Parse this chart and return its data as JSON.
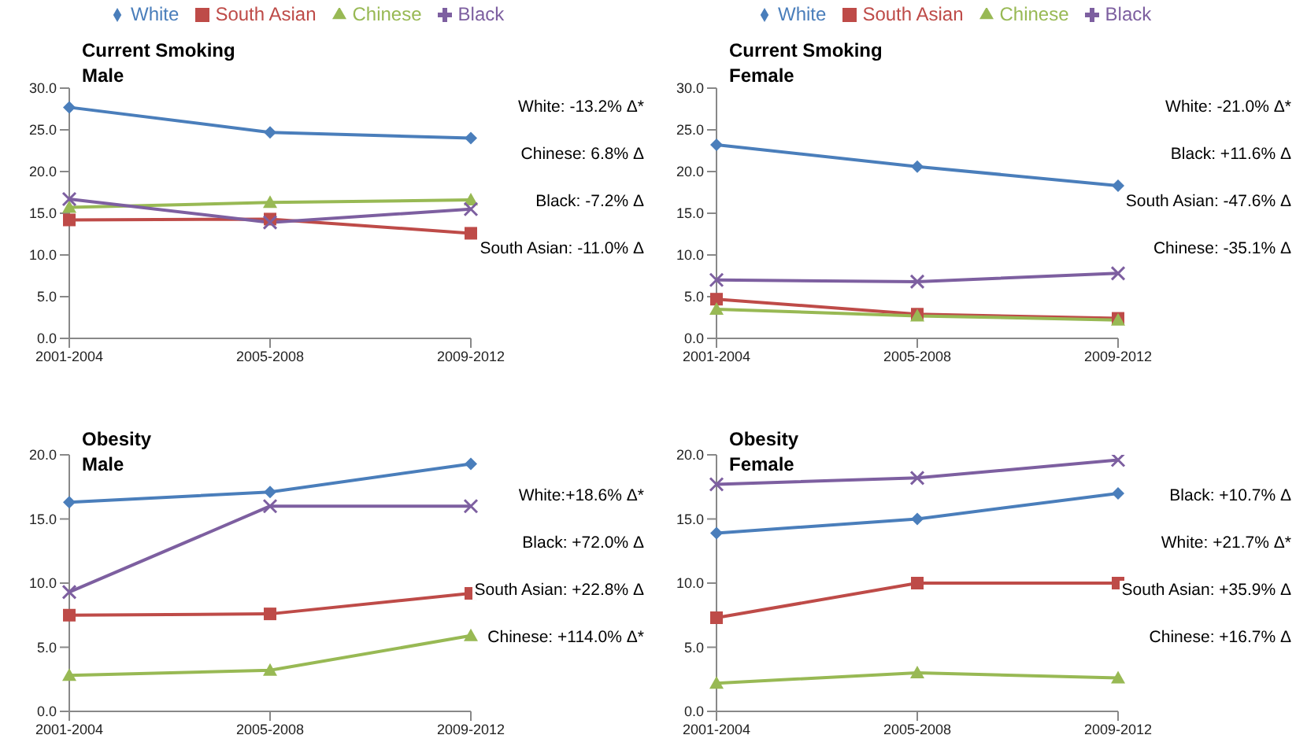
{
  "chart_data": [
    {
      "type": "line",
      "title": "Current Smoking",
      "subtitle": "Male",
      "categories": [
        "2001-2004",
        "2005-2008",
        "2009-2012"
      ],
      "ylim": [
        0,
        30
      ],
      "yticks": [
        {
          "value": 0,
          "label": "0.0"
        },
        {
          "value": 5,
          "label": "5.0"
        },
        {
          "value": 10,
          "label": "10.0"
        },
        {
          "value": 15,
          "label": "15.0"
        },
        {
          "value": 20,
          "label": "20.0"
        },
        {
          "value": 25,
          "label": "25.0"
        },
        {
          "value": 30,
          "label": "30.0"
        }
      ],
      "grid": false,
      "legend": "top",
      "series": [
        {
          "name": "White",
          "color": "#4a7ebb",
          "marker": "diamond",
          "values": [
            27.7,
            24.7,
            24.0
          ]
        },
        {
          "name": "South Asian",
          "color": "#be4b48",
          "marker": "square",
          "values": [
            14.2,
            14.3,
            12.6
          ]
        },
        {
          "name": "Chinese",
          "color": "#98b954",
          "marker": "triangle",
          "values": [
            15.7,
            16.3,
            16.6
          ]
        },
        {
          "name": "Black",
          "color": "#7d5fa0",
          "marker": "cross",
          "values": [
            16.7,
            13.9,
            15.5
          ]
        }
      ],
      "annotations": [
        "White: -13.2%  Δ*",
        "Chinese:  6.8% Δ",
        "Black: -7.2% Δ",
        "South Asian: -11.0% Δ"
      ]
    },
    {
      "type": "line",
      "title": "Current Smoking",
      "subtitle": "Female",
      "categories": [
        "2001-2004",
        "2005-2008",
        "2009-2012"
      ],
      "ylim": [
        0,
        30
      ],
      "yticks": [
        {
          "value": 0,
          "label": "0.0"
        },
        {
          "value": 5,
          "label": "5.0"
        },
        {
          "value": 10,
          "label": "10.0"
        },
        {
          "value": 15,
          "label": "15.0"
        },
        {
          "value": 20,
          "label": "20.0"
        },
        {
          "value": 25,
          "label": "25.0"
        },
        {
          "value": 30,
          "label": "30.0"
        }
      ],
      "grid": false,
      "legend": "top",
      "series": [
        {
          "name": "White",
          "color": "#4a7ebb",
          "marker": "diamond",
          "values": [
            23.2,
            20.6,
            18.3
          ]
        },
        {
          "name": "South Asian",
          "color": "#be4b48",
          "marker": "square",
          "values": [
            4.7,
            2.9,
            2.4
          ]
        },
        {
          "name": "Chinese",
          "color": "#98b954",
          "marker": "triangle",
          "values": [
            3.5,
            2.7,
            2.2
          ]
        },
        {
          "name": "Black",
          "color": "#7d5fa0",
          "marker": "cross",
          "values": [
            7.0,
            6.8,
            7.8
          ]
        }
      ],
      "annotations": [
        "White: -21.0% Δ*",
        "Black: +11.6% Δ",
        "South Asian: -47.6% Δ",
        "Chinese: -35.1% Δ"
      ]
    },
    {
      "type": "line",
      "title": "Obesity",
      "subtitle": "Male",
      "categories": [
        "2001-2004",
        "2005-2008",
        "2009-2012"
      ],
      "ylim": [
        0,
        20
      ],
      "yticks": [
        {
          "value": 0,
          "label": "0.0"
        },
        {
          "value": 5,
          "label": "5.0"
        },
        {
          "value": 10,
          "label": "10.0"
        },
        {
          "value": 15,
          "label": "15.0"
        },
        {
          "value": 20,
          "label": "20.0"
        }
      ],
      "grid": false,
      "series": [
        {
          "color": "#4a7ebb",
          "marker": "diamond",
          "values": [
            16.3,
            17.1,
            19.3
          ]
        },
        {
          "color": "#be4b48",
          "marker": "square",
          "values": [
            7.5,
            7.6,
            9.2
          ]
        },
        {
          "color": "#98b954",
          "marker": "triangle",
          "values": [
            2.8,
            3.2,
            5.9
          ]
        },
        {
          "color": "#7d5fa0",
          "marker": "cross",
          "values": [
            9.3,
            16.0,
            16.0
          ]
        }
      ],
      "annotations": [
        "White:+18.6% Δ*",
        "Black: +72.0% Δ",
        "South Asian: +22.8% Δ",
        "Chinese: +114.0% Δ*"
      ]
    },
    {
      "type": "line",
      "title": "Obesity",
      "subtitle": "Female",
      "categories": [
        "2001-2004",
        "2005-2008",
        "2009-2012"
      ],
      "ylim": [
        0,
        20
      ],
      "yticks": [
        {
          "value": 0,
          "label": "0.0"
        },
        {
          "value": 5,
          "label": "5.0"
        },
        {
          "value": 10,
          "label": "10.0"
        },
        {
          "value": 15,
          "label": "15.0"
        },
        {
          "value": 20,
          "label": "20.0"
        }
      ],
      "grid": false,
      "series": [
        {
          "color": "#4a7ebb",
          "marker": "diamond",
          "values": [
            13.9,
            15.0,
            17.0
          ]
        },
        {
          "color": "#be4b48",
          "marker": "square",
          "values": [
            7.3,
            10.0,
            10.0
          ]
        },
        {
          "color": "#98b954",
          "marker": "triangle",
          "values": [
            2.2,
            3.0,
            2.6
          ]
        },
        {
          "color": "#7d5fa0",
          "marker": "cross",
          "values": [
            17.7,
            18.2,
            19.6
          ]
        }
      ],
      "annotations": [
        "Black: +10.7% Δ",
        "White: +21.7% Δ*",
        "South Asian: +35.9% Δ",
        "Chinese: +16.7% Δ"
      ]
    }
  ]
}
